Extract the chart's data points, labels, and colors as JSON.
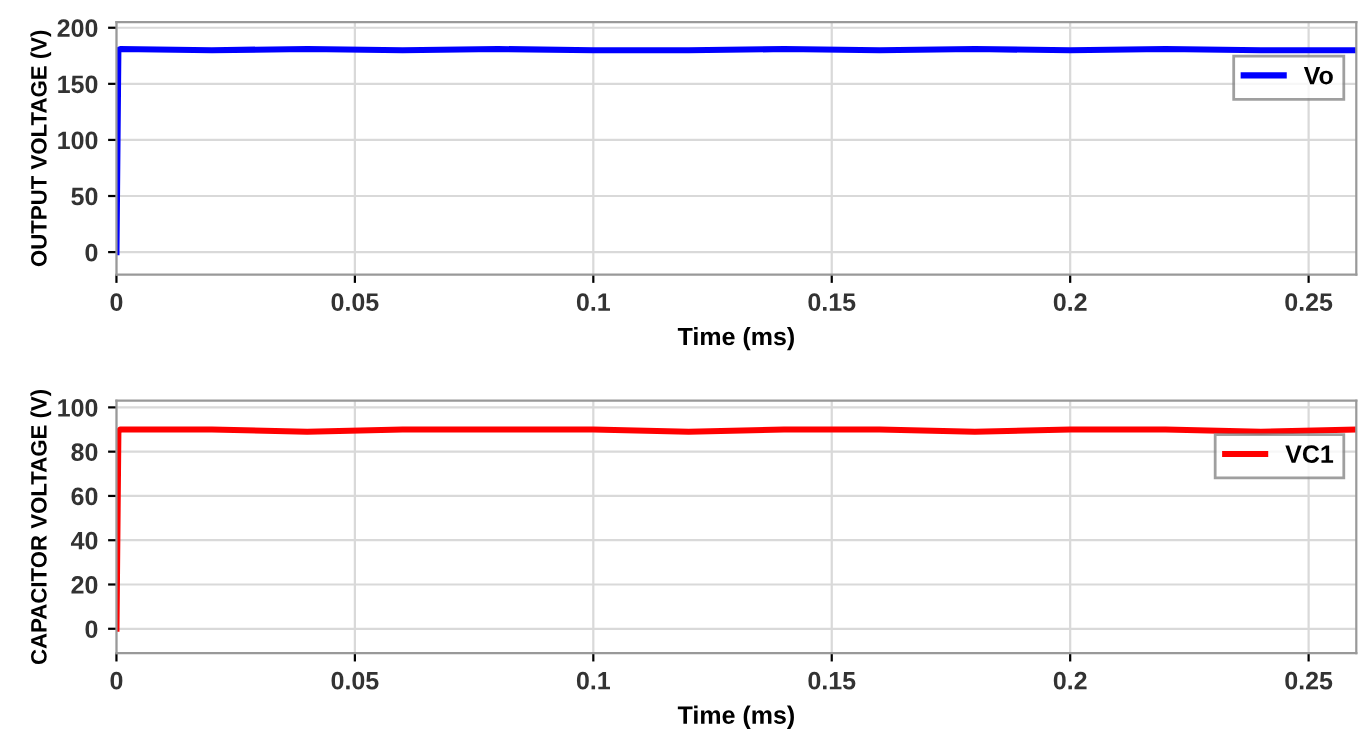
{
  "chart_data": [
    {
      "type": "line",
      "xlabel": "Time (ms)",
      "ylabel": "OUTPUT VOLTAGE (V)",
      "xlim": [
        0,
        0.26
      ],
      "ylim": [
        -20,
        205
      ],
      "xticks": [
        0,
        0.05,
        0.1,
        0.15,
        0.2,
        0.25
      ],
      "yticks": [
        0,
        50,
        100,
        150,
        200
      ],
      "grid": true,
      "legend": "right",
      "series": [
        {
          "name": "Vo",
          "color": "#0000ff",
          "x": [
            0,
            0.0004,
            0.0008,
            0.02,
            0.04,
            0.06,
            0.08,
            0.1,
            0.12,
            0.14,
            0.16,
            0.18,
            0.2,
            0.22,
            0.24,
            0.26
          ],
          "values": [
            0,
            180,
            181,
            180,
            181,
            180,
            181,
            180,
            180,
            181,
            180,
            181,
            180,
            181,
            180,
            180
          ]
        }
      ]
    },
    {
      "type": "line",
      "xlabel": "Time (ms)",
      "ylabel": "CAPACITOR VOLTAGE (V)",
      "xlim": [
        0,
        0.26
      ],
      "ylim": [
        -11,
        103
      ],
      "xticks": [
        0,
        0.05,
        0.1,
        0.15,
        0.2,
        0.25
      ],
      "yticks": [
        0,
        20,
        40,
        60,
        80,
        100
      ],
      "grid": true,
      "legend": "right",
      "series": [
        {
          "name": "VC1",
          "color": "#ff0000",
          "x": [
            0,
            0.0004,
            0.0008,
            0.02,
            0.04,
            0.06,
            0.08,
            0.1,
            0.12,
            0.14,
            0.16,
            0.18,
            0.2,
            0.22,
            0.24,
            0.26
          ],
          "values": [
            0,
            89,
            90,
            90,
            89,
            90,
            90,
            90,
            89,
            90,
            90,
            89,
            90,
            90,
            89,
            90
          ]
        }
      ]
    }
  ]
}
